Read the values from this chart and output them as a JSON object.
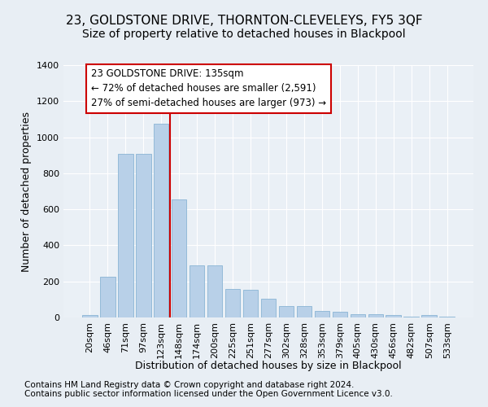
{
  "title": "23, GOLDSTONE DRIVE, THORNTON-CLEVELEYS, FY5 3QF",
  "subtitle": "Size of property relative to detached houses in Blackpool",
  "xlabel": "Distribution of detached houses by size in Blackpool",
  "ylabel": "Number of detached properties",
  "footer_line1": "Contains HM Land Registry data © Crown copyright and database right 2024.",
  "footer_line2": "Contains public sector information licensed under the Open Government Licence v3.0.",
  "categories": [
    "20sqm",
    "46sqm",
    "71sqm",
    "97sqm",
    "123sqm",
    "148sqm",
    "174sqm",
    "200sqm",
    "225sqm",
    "251sqm",
    "277sqm",
    "302sqm",
    "328sqm",
    "353sqm",
    "379sqm",
    "405sqm",
    "430sqm",
    "456sqm",
    "482sqm",
    "507sqm",
    "533sqm"
  ],
  "values": [
    15,
    225,
    910,
    910,
    1075,
    655,
    290,
    290,
    160,
    155,
    105,
    65,
    65,
    35,
    30,
    20,
    18,
    12,
    5,
    15,
    5
  ],
  "bar_color": "#b8d0e8",
  "bar_edge_color": "#8ab4d4",
  "vline_x": 4.5,
  "vline_color": "#cc0000",
  "annotation_line1": "23 GOLDSTONE DRIVE: 135sqm",
  "annotation_line2": "← 72% of detached houses are smaller (2,591)",
  "annotation_line3": "27% of semi-detached houses are larger (973) →",
  "annotation_box_color": "#ffffff",
  "annotation_box_edge_color": "#cc0000",
  "ylim": [
    0,
    1400
  ],
  "yticks": [
    0,
    200,
    400,
    600,
    800,
    1000,
    1200,
    1400
  ],
  "bg_color": "#e8eef4",
  "plot_bg_color": "#eaf0f6",
  "title_fontsize": 11,
  "subtitle_fontsize": 10,
  "axis_label_fontsize": 9,
  "tick_fontsize": 8,
  "annotation_fontsize": 8.5,
  "footer_fontsize": 7.5
}
